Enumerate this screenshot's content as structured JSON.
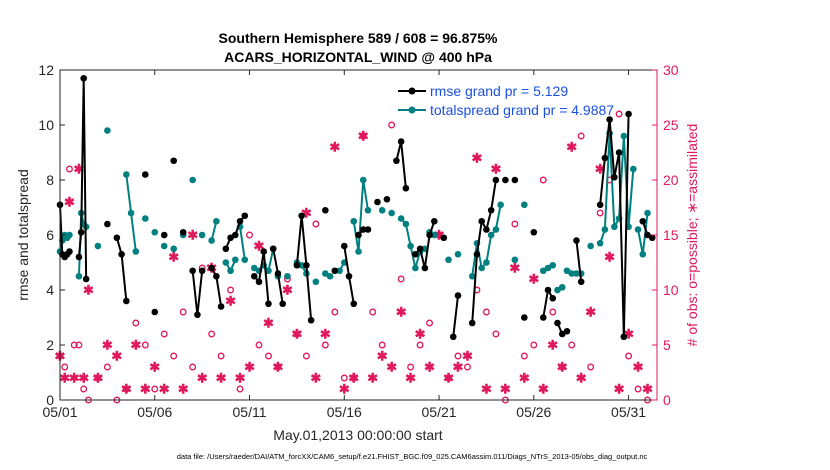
{
  "chart_data": {
    "type": "line",
    "title_line1": "Southern Hemisphere 589 / 608 = 96.875%",
    "title_line2": "ACARS_HORIZONTAL_WIND @ 400 hPa",
    "xlabel": "May.01,2013 00:00:00 start",
    "ylabel": "rmse and totalspread",
    "y2label": "# of obs: o=possible; ∗=assimilated",
    "footer": "data file: /Users/raeder/DAI/ATM_forcXX/CAM6_setup/f.e21.FHIST_BGC.f09_025.CAM6assim.011/Diags_NTrS_2013-05/obs_diag_output.nc",
    "xlim": [
      0,
      31.5
    ],
    "ylim": [
      0,
      12
    ],
    "y2lim": [
      0,
      30
    ],
    "xticks": [
      {
        "v": 0,
        "label": "05/01"
      },
      {
        "v": 5,
        "label": "05/06"
      },
      {
        "v": 10,
        "label": "05/11"
      },
      {
        "v": 15,
        "label": "05/16"
      },
      {
        "v": 20,
        "label": "05/21"
      },
      {
        "v": 25,
        "label": "05/26"
      },
      {
        "v": 30,
        "label": "05/31"
      }
    ],
    "yticks": [
      0,
      2,
      4,
      6,
      8,
      10,
      12
    ],
    "y2ticks": [
      0,
      5,
      10,
      15,
      20,
      25,
      30
    ],
    "legend_rmse": "rmse grand pr = 5.129",
    "legend_spread": "totalspread grand pr = 4.9887",
    "colors": {
      "rmse": "#000000",
      "spread": "#008080",
      "obs": "#e0185c",
      "legend_text": "#1a50e0"
    },
    "rmse_segments": [
      [
        [
          0.0,
          7.1
        ],
        [
          0.12,
          5.3
        ],
        [
          0.25,
          5.2
        ],
        [
          0.38,
          5.3
        ],
        [
          0.5,
          5.4
        ]
      ],
      [
        [
          1.0,
          5.2
        ],
        [
          1.12,
          6.1
        ],
        [
          1.25,
          11.7
        ],
        [
          1.38,
          4.4
        ]
      ],
      [
        [
          2.5,
          6.4
        ]
      ],
      [
        [
          3.0,
          5.9
        ],
        [
          3.25,
          5.3
        ],
        [
          3.5,
          3.6
        ]
      ],
      [
        [
          4.5,
          8.2
        ]
      ],
      [
        [
          5.0,
          3.2
        ]
      ],
      [
        [
          5.5,
          6.0
        ]
      ],
      [
        [
          6.0,
          8.7
        ]
      ],
      [
        [
          6.5,
          6.1
        ]
      ],
      [
        [
          7.0,
          4.7
        ],
        [
          7.25,
          3.1
        ],
        [
          7.5,
          4.7
        ]
      ],
      [
        [
          8.0,
          4.8
        ],
        [
          8.25,
          4.5
        ],
        [
          8.5,
          3.4
        ]
      ],
      [
        [
          8.75,
          5.5
        ],
        [
          9.0,
          5.9
        ],
        [
          9.25,
          6.0
        ],
        [
          9.5,
          6.5
        ],
        [
          9.75,
          6.7
        ]
      ],
      [
        [
          10.25,
          4.5
        ],
        [
          10.5,
          4.3
        ],
        [
          10.75,
          5.4
        ],
        [
          11.0,
          3.5
        ]
      ],
      [
        [
          11.25,
          5.5
        ],
        [
          11.5,
          4.6
        ],
        [
          11.75,
          3.5
        ]
      ],
      [
        [
          12.5,
          4.9
        ],
        [
          12.75,
          6.7
        ],
        [
          13.0,
          4.9
        ],
        [
          13.25,
          2.9
        ]
      ],
      [
        [
          14.0,
          6.9
        ]
      ],
      [
        [
          14.5,
          4.7
        ]
      ],
      [
        [
          15.0,
          5.6
        ],
        [
          15.25,
          4.5
        ],
        [
          15.5,
          3.5
        ]
      ],
      [
        [
          15.75,
          6.0
        ],
        [
          16.0,
          6.2
        ],
        [
          16.25,
          6.2
        ]
      ],
      [
        [
          16.75,
          7.2
        ]
      ],
      [
        [
          17.25,
          7.3
        ]
      ],
      [
        [
          17.75,
          8.7
        ],
        [
          18.0,
          9.4
        ],
        [
          18.25,
          7.7
        ]
      ],
      [
        [
          18.75,
          5.3
        ],
        [
          19.0,
          5.5
        ],
        [
          19.25,
          4.8
        ],
        [
          19.5,
          6.0
        ],
        [
          19.75,
          6.5
        ]
      ],
      [
        [
          20.25,
          5.9
        ]
      ],
      [
        [
          20.75,
          2.3
        ],
        [
          21.0,
          3.8
        ]
      ],
      [
        [
          21.75,
          2.8
        ],
        [
          22.0,
          5.3
        ],
        [
          22.25,
          6.5
        ],
        [
          22.5,
          6.2
        ],
        [
          22.75,
          6.9
        ],
        [
          23.0,
          8.0
        ]
      ],
      [
        [
          23.5,
          8.0
        ]
      ],
      [
        [
          24.0,
          8.0
        ]
      ],
      [
        [
          24.5,
          3.0
        ]
      ],
      [
        [
          25.0,
          6.1
        ]
      ],
      [
        [
          25.5,
          3.0
        ],
        [
          25.75,
          4.0
        ],
        [
          26.0,
          3.7
        ]
      ],
      [
        [
          26.25,
          2.8
        ],
        [
          26.5,
          2.4
        ],
        [
          26.75,
          2.5
        ]
      ],
      [
        [
          27.25,
          5.8
        ],
        [
          27.5,
          4.3
        ]
      ],
      [
        [
          28.5,
          7.1
        ],
        [
          28.75,
          8.8
        ],
        [
          29.0,
          10.2
        ],
        [
          29.25,
          8.1
        ],
        [
          29.5,
          9.0
        ],
        [
          29.75,
          2.3
        ],
        [
          30.0,
          10.4
        ]
      ],
      [
        [
          30.75,
          6.5
        ],
        [
          31.0,
          6.0
        ],
        [
          31.25,
          5.9
        ]
      ]
    ],
    "spread_segments": [
      [
        [
          0.0,
          5.4
        ],
        [
          0.12,
          5.8
        ],
        [
          0.25,
          6.0
        ],
        [
          0.38,
          5.9
        ],
        [
          0.5,
          6.0
        ]
      ],
      [
        [
          1.0,
          4.5
        ],
        [
          1.12,
          6.8
        ],
        [
          1.25,
          6.4
        ],
        [
          1.38,
          6.3
        ]
      ],
      [
        [
          2.0,
          5.6
        ]
      ],
      [
        [
          2.5,
          9.8
        ]
      ],
      [
        [
          3.5,
          8.2
        ],
        [
          3.75,
          6.8
        ],
        [
          4.0,
          5.4
        ]
      ],
      [
        [
          4.5,
          6.6
        ]
      ],
      [
        [
          5.0,
          6.1
        ]
      ],
      [
        [
          5.5,
          5.6
        ]
      ],
      [
        [
          6.0,
          5.5
        ]
      ],
      [
        [
          6.5,
          6.0
        ]
      ],
      [
        [
          7.0,
          8.0
        ]
      ],
      [
        [
          7.5,
          6.0
        ]
      ],
      [
        [
          8.0,
          5.8
        ],
        [
          8.25,
          6.5
        ]
      ],
      [
        [
          8.75,
          5.0
        ],
        [
          9.0,
          4.7
        ],
        [
          9.25,
          5.1
        ]
      ],
      [
        [
          9.5,
          6.3
        ],
        [
          9.75,
          5.1
        ]
      ],
      [
        [
          10.25,
          4.8
        ],
        [
          10.5,
          4.7
        ],
        [
          10.75,
          4.9
        ],
        [
          11.0,
          4.7
        ],
        [
          11.25,
          5.5
        ]
      ],
      [
        [
          11.5,
          4.5
        ]
      ],
      [
        [
          12.0,
          4.5
        ]
      ],
      [
        [
          12.5,
          5.0
        ],
        [
          12.75,
          4.9
        ],
        [
          13.0,
          4.6
        ]
      ],
      [
        [
          13.5,
          4.3
        ]
      ],
      [
        [
          14.0,
          4.6
        ],
        [
          14.25,
          4.5
        ]
      ],
      [
        [
          14.75,
          4.7
        ],
        [
          15.0,
          5.0
        ]
      ],
      [
        [
          15.5,
          6.5
        ],
        [
          15.75,
          5.4
        ],
        [
          16.0,
          8.0
        ],
        [
          16.25,
          6.9
        ]
      ],
      [
        [
          17.0,
          6.9
        ]
      ],
      [
        [
          17.5,
          6.8
        ]
      ],
      [
        [
          18.0,
          6.6
        ],
        [
          18.25,
          6.4
        ],
        [
          18.5,
          5.6
        ],
        [
          18.75,
          4.8
        ],
        [
          19.0,
          5.4
        ],
        [
          19.25,
          5.5
        ]
      ],
      [
        [
          19.5,
          6.1
        ],
        [
          19.75,
          6.0
        ]
      ],
      [
        [
          20.5,
          5.1
        ]
      ],
      [
        [
          21.0,
          5.3
        ]
      ],
      [
        [
          21.75,
          4.5
        ],
        [
          22.0,
          5.7
        ],
        [
          22.25,
          4.8
        ],
        [
          22.5,
          5.0
        ],
        [
          22.75,
          6.0
        ],
        [
          23.0,
          6.2
        ],
        [
          23.25,
          7.1
        ]
      ],
      [
        [
          24.0,
          5.1
        ]
      ],
      [
        [
          24.5,
          7.1
        ]
      ],
      [
        [
          25.5,
          4.7
        ]
      ],
      [
        [
          25.75,
          4.8
        ],
        [
          26.0,
          4.9
        ]
      ],
      [
        [
          26.25,
          4.0
        ],
        [
          26.5,
          4.1
        ]
      ],
      [
        [
          26.75,
          4.7
        ],
        [
          27.0,
          4.6
        ],
        [
          27.25,
          4.6
        ]
      ],
      [
        [
          27.5,
          4.6
        ]
      ],
      [
        [
          28.0,
          5.6
        ]
      ],
      [
        [
          28.5,
          5.7
        ],
        [
          28.75,
          6.2
        ],
        [
          29.0,
          9.7
        ],
        [
          29.25,
          6.3
        ],
        [
          29.5,
          6.6
        ],
        [
          29.75,
          9.6
        ],
        [
          30.0,
          6.3
        ],
        [
          30.25,
          8.4
        ]
      ],
      [
        [
          30.5,
          6.2
        ],
        [
          30.75,
          5.3
        ],
        [
          31.0,
          6.8
        ]
      ]
    ],
    "possible_x": [
      0.0,
      0.25,
      0.5,
      0.75,
      1.0,
      1.25,
      1.5,
      2.0,
      2.5,
      3.0,
      3.5,
      4.0,
      4.5,
      5.0,
      5.5,
      6.0,
      6.5,
      7.0,
      7.5,
      8.0,
      8.5,
      9.0,
      9.5,
      10.0,
      10.5,
      11.0,
      11.5,
      12.0,
      12.5,
      13.0,
      13.5,
      14.0,
      14.5,
      15.0,
      15.5,
      16.0,
      16.5,
      17.0,
      17.5,
      18.0,
      18.5,
      19.0,
      19.5,
      20.0,
      20.5,
      21.0,
      21.5,
      22.0,
      22.5,
      23.0,
      23.5,
      24.0,
      24.5,
      25.0,
      25.5,
      26.0,
      26.5,
      27.0,
      27.5,
      28.0,
      28.5,
      29.0,
      29.5,
      30.0,
      30.5,
      31.0
    ],
    "possible_y": [
      4,
      3,
      21,
      5,
      5,
      1,
      0,
      2,
      3,
      0,
      1,
      7,
      5,
      1,
      6,
      4,
      8,
      3,
      12,
      6,
      4,
      10,
      1,
      15,
      5,
      4,
      3,
      11,
      6,
      4,
      16,
      5,
      8,
      2,
      2,
      24,
      8,
      5,
      25,
      11,
      3,
      5,
      7,
      15,
      2,
      4,
      3,
      10,
      8,
      6,
      0,
      16,
      4,
      5,
      20,
      8,
      3,
      5,
      24,
      3,
      17,
      20,
      26,
      4,
      1,
      0
    ],
    "assim_x": [
      0.0,
      0.25,
      0.5,
      0.75,
      1.0,
      1.25,
      1.5,
      2.0,
      2.5,
      3.0,
      3.5,
      4.0,
      4.5,
      5.0,
      5.5,
      6.0,
      6.5,
      7.0,
      7.5,
      8.0,
      8.5,
      9.0,
      9.5,
      10.0,
      10.5,
      11.0,
      11.5,
      12.0,
      12.5,
      13.0,
      13.5,
      14.0,
      14.5,
      15.0,
      15.5,
      16.0,
      16.5,
      17.0,
      17.5,
      18.0,
      18.5,
      19.0,
      19.5,
      20.0,
      20.5,
      21.0,
      21.5,
      22.0,
      22.5,
      23.0,
      23.5,
      24.0,
      24.5,
      25.0,
      25.5,
      26.0,
      26.5,
      27.0,
      27.5,
      28.0,
      28.5,
      29.0,
      29.5,
      30.0,
      30.5,
      31.0
    ],
    "assim_y": [
      4,
      2,
      18,
      2,
      21,
      2,
      10,
      2,
      5,
      4,
      1,
      5,
      1,
      3,
      1,
      13,
      1,
      15,
      2,
      12,
      2,
      9,
      2,
      3,
      14,
      7,
      3,
      10,
      6,
      17,
      2,
      6,
      23,
      1,
      2,
      24,
      2,
      4,
      3,
      8,
      2,
      6,
      3,
      15,
      2,
      3,
      4,
      22,
      1,
      21,
      1,
      12,
      2,
      11,
      1,
      5,
      3,
      23,
      2,
      8,
      21,
      13,
      1,
      6,
      3,
      1
    ]
  }
}
